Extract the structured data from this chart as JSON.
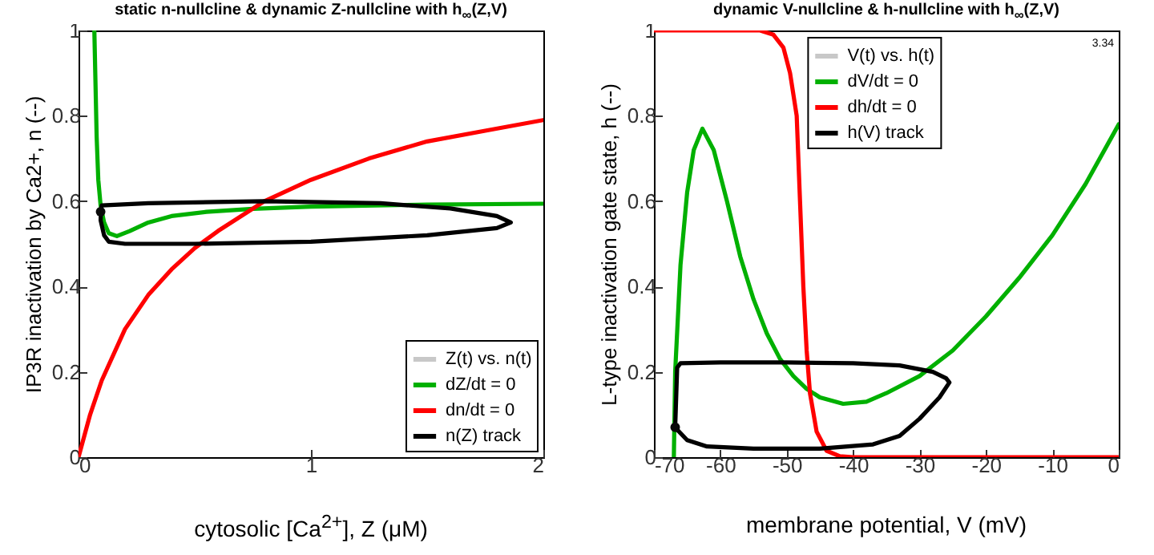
{
  "chart_data": [
    {
      "type": "line",
      "title": "static n-nullcline & dynamic Z-nullcline with h$_{∞}$(Z,V)",
      "xlabel": "cytosolic [Ca$^{2+}$], Z (μM)",
      "ylabel": "IP3R inactivation by Ca2+, n (--)",
      "xlim": [
        0,
        2
      ],
      "xticks": [
        0,
        1,
        2
      ],
      "ylim": [
        0,
        1
      ],
      "yticks": [
        0,
        0.2,
        0.4,
        0.6,
        0.8,
        1
      ],
      "grid": false,
      "legend": "bottom right",
      "series": [
        {
          "name": "Z(t) vs. n(t)",
          "color": "#c8c8c8",
          "values": [
            null
          ]
        },
        {
          "name": "dZ/dt = 0",
          "color": "#00b000",
          "x": [
            0.068,
            0.072,
            0.078,
            0.085,
            0.095,
            0.11,
            0.13,
            0.165,
            0.22,
            0.3,
            0.4,
            0.55,
            0.75,
            1.0,
            1.5,
            2.0
          ],
          "values": [
            1.0,
            0.9,
            0.75,
            0.65,
            0.59,
            0.55,
            0.525,
            0.518,
            0.53,
            0.55,
            0.565,
            0.575,
            0.582,
            0.587,
            0.592,
            0.594
          ]
        },
        {
          "name": "dn/dt = 0",
          "color": "#ff0000",
          "x": [
            0,
            0.05,
            0.1,
            0.2,
            0.3,
            0.4,
            0.5,
            0.6,
            0.8,
            1.0,
            1.25,
            1.5,
            1.75,
            2.0
          ],
          "values": [
            0,
            0.1,
            0.18,
            0.3,
            0.38,
            0.44,
            0.49,
            0.53,
            0.6,
            0.65,
            0.7,
            0.74,
            0.765,
            0.79
          ]
        },
        {
          "name": "n(Z) track",
          "color": "#000000",
          "x": [
            0.095,
            0.1,
            0.3,
            0.8,
            1.3,
            1.6,
            1.8,
            1.86,
            1.8,
            1.5,
            1.0,
            0.5,
            0.2,
            0.13,
            0.11,
            0.095,
            0.096
          ],
          "values": [
            0.575,
            0.59,
            0.595,
            0.6,
            0.595,
            0.583,
            0.565,
            0.55,
            0.537,
            0.52,
            0.505,
            0.5,
            0.5,
            0.505,
            0.52,
            0.555,
            0.571
          ]
        },
        {
          "type": "scatter",
          "color": "#0a0a0a",
          "x": [
            0.095
          ],
          "values": [
            0.575
          ]
        }
      ]
    },
    {
      "type": "line",
      "title": "dynamic V-nullcline & h-nullcline with h$_{∞}$(Z,V)",
      "xlabel": "membrane potential, V (mV)",
      "ylabel": "L-type inactivation gate state, h (--)",
      "xlim": [
        -70,
        0
      ],
      "xticks": [
        -70,
        -60,
        -50,
        -40,
        -30,
        -20,
        -10,
        0
      ],
      "ylim": [
        0,
        1
      ],
      "yticks": [
        0,
        0.2,
        0.4,
        0.6,
        0.8,
        1
      ],
      "grid": false,
      "legend": "top",
      "annotations": [
        "3.34"
      ],
      "series": [
        {
          "name": "V(t) vs. h(t)",
          "color": "#c8c8c8",
          "values": [
            null
          ]
        },
        {
          "name": "dV/dt = 0",
          "color": "#00b000",
          "x": [
            -67,
            -66.8,
            -66,
            -65,
            -64,
            -62.7,
            -61,
            -59,
            -57,
            -55,
            -53,
            -51,
            -49,
            -47,
            -45,
            -41.5,
            -38,
            -35,
            -30,
            -25,
            -20,
            -15,
            -10,
            -5,
            0
          ],
          "values": [
            0,
            0.2,
            0.45,
            0.62,
            0.72,
            0.77,
            0.72,
            0.6,
            0.47,
            0.37,
            0.29,
            0.23,
            0.19,
            0.16,
            0.14,
            0.125,
            0.13,
            0.15,
            0.19,
            0.25,
            0.33,
            0.42,
            0.52,
            0.64,
            0.78
          ]
        },
        {
          "name": "dh/dt = 0",
          "color": "#ff0000",
          "x": [
            -70,
            -54,
            -52,
            -50.5,
            -49.5,
            -48.5,
            -48,
            -47.5,
            -47,
            -46.5,
            -45.5,
            -44,
            -42,
            -40,
            0
          ],
          "values": [
            1,
            1,
            0.99,
            0.96,
            0.9,
            0.8,
            0.6,
            0.4,
            0.25,
            0.15,
            0.06,
            0.015,
            0.002,
            0,
            0
          ]
        },
        {
          "name": "h(V) track",
          "color": "#000000",
          "x": [
            -66.8,
            -66.5,
            -66,
            -60,
            -50,
            -40,
            -33,
            -28,
            -26,
            -25.5,
            -27,
            -30,
            -33,
            -37,
            -45,
            -55,
            -62,
            -65,
            -66.6
          ],
          "values": [
            0.07,
            0.21,
            0.22,
            0.222,
            0.222,
            0.22,
            0.215,
            0.2,
            0.185,
            0.175,
            0.14,
            0.09,
            0.05,
            0.03,
            0.02,
            0.02,
            0.025,
            0.04,
            0.066
          ]
        },
        {
          "type": "scatter",
          "color": "#0a0a0a",
          "x": [
            -66.8
          ],
          "values": [
            0.07
          ]
        }
      ]
    }
  ]
}
